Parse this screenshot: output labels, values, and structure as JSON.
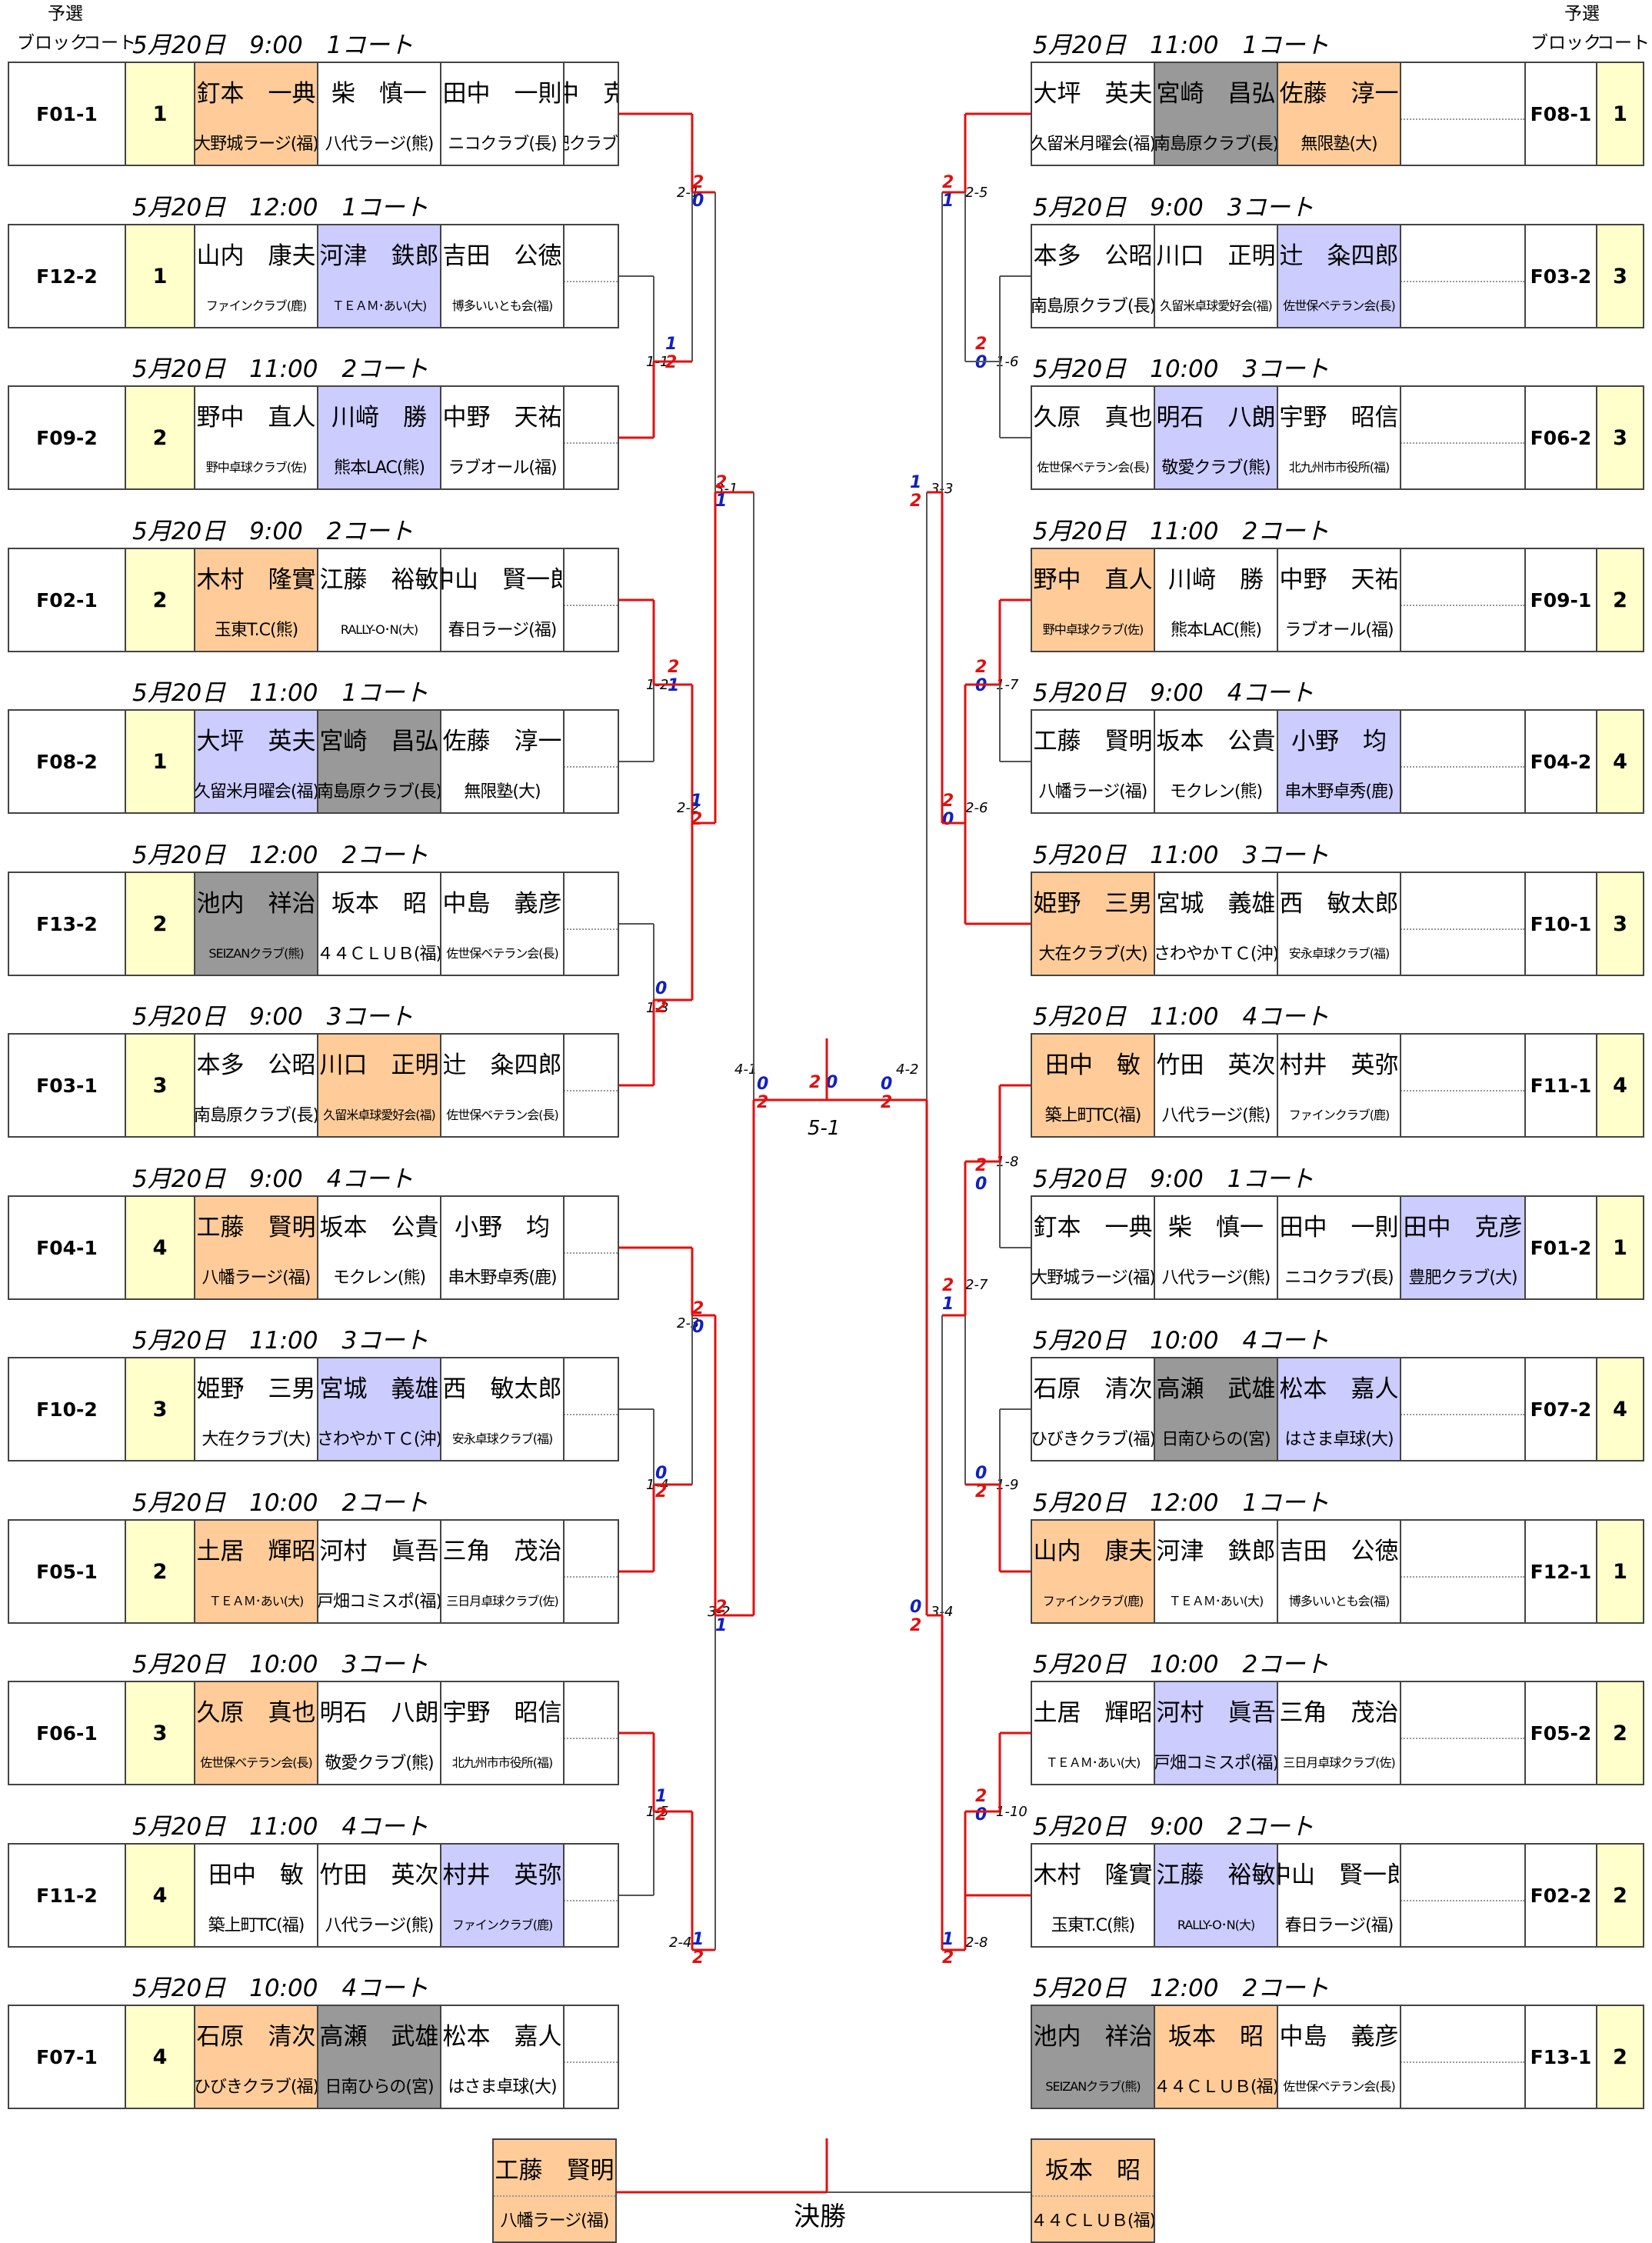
{
  "headers": {
    "yosen": "予選",
    "block": "ブロック",
    "court": "コート"
  },
  "colors": {
    "win": "#ffcc99",
    "lose": "#ccccff",
    "abs": "#999999",
    "rank": "#ffffcc",
    "line_win": "#e01010",
    "score_red": "#e01010",
    "score_blue": "#1020c0"
  },
  "left_groups": [
    {
      "title": "5月20日　9:00　1コート",
      "id": "F01-1",
      "rank": "1",
      "players": [
        {
          "name": "釘本　一典",
          "club": "大野城ラージ(福)",
          "st": "w"
        },
        {
          "name": "柴　慎一",
          "club": "八代ラージ(熊)",
          "st": ""
        },
        {
          "name": "田中　一則",
          "club": "ニコクラブ(長)",
          "st": ""
        },
        {
          "name": "田中　克彦",
          "club": "豊肥クラブ(大)",
          "st": ""
        }
      ]
    },
    {
      "title": "5月20日　12:00　1コート",
      "id": "F12-2",
      "rank": "1",
      "players": [
        {
          "name": "山内　康夫",
          "club": "ファインクラブ(鹿)",
          "st": ""
        },
        {
          "name": "河津　鉄郎",
          "club": "ＴＥＡＭ･あい(大)",
          "st": "l"
        },
        {
          "name": "吉田　公徳",
          "club": "博多いいとも会(福)",
          "st": ""
        }
      ]
    },
    {
      "title": "5月20日　11:00　2コート",
      "id": "F09-2",
      "rank": "2",
      "players": [
        {
          "name": "野中　直人",
          "club": "野中卓球クラブ(佐)",
          "st": ""
        },
        {
          "name": "川﨑　勝",
          "club": "熊本LAC(熊)",
          "st": "l"
        },
        {
          "name": "中野　天祐",
          "club": "ラブオール(福)",
          "st": ""
        }
      ]
    },
    {
      "title": "5月20日　9:00　2コート",
      "id": "F02-1",
      "rank": "2",
      "players": [
        {
          "name": "木村　隆實",
          "club": "玉東T.C(熊)",
          "st": "w"
        },
        {
          "name": "江藤　裕敏",
          "club": "RALLY-O･N(大)",
          "st": ""
        },
        {
          "name": "中山　賢一郎",
          "club": "春日ラージ(福)",
          "st": ""
        }
      ]
    },
    {
      "title": "5月20日　11:00　1コート",
      "id": "F08-2",
      "rank": "1",
      "players": [
        {
          "name": "大坪　英夫",
          "club": "久留米月曜会(福)",
          "st": "l"
        },
        {
          "name": "宮崎　昌弘",
          "club": "南島原クラブ(長)",
          "st": "a"
        },
        {
          "name": "佐藤　淳一",
          "club": "無限塾(大)",
          "st": ""
        }
      ]
    },
    {
      "title": "5月20日　12:00　2コート",
      "id": "F13-2",
      "rank": "2",
      "players": [
        {
          "name": "池内　祥治",
          "club": "SEIZANクラブ(熊)",
          "st": "a"
        },
        {
          "name": "坂本　昭",
          "club": "４４ＣＬＵＢ(福)",
          "st": ""
        },
        {
          "name": "中島　義彦",
          "club": "佐世保ベテラン会(長)",
          "st": ""
        }
      ]
    },
    {
      "title": "5月20日　9:00　3コート",
      "id": "F03-1",
      "rank": "3",
      "players": [
        {
          "name": "本多　公昭",
          "club": "南島原クラブ(長)",
          "st": ""
        },
        {
          "name": "川口　正明",
          "club": "久留米卓球愛好会(福)",
          "st": "w"
        },
        {
          "name": "辻　粂四郎",
          "club": "佐世保ベテラン会(長)",
          "st": ""
        }
      ]
    },
    {
      "title": "5月20日　9:00　4コート",
      "id": "F04-1",
      "rank": "4",
      "players": [
        {
          "name": "工藤　賢明",
          "club": "八幡ラージ(福)",
          "st": "w"
        },
        {
          "name": "坂本　公貴",
          "club": "モクレン(熊)",
          "st": ""
        },
        {
          "name": "小野　均",
          "club": "串木野卓秀(鹿)",
          "st": ""
        }
      ]
    },
    {
      "title": "5月20日　11:00　3コート",
      "id": "F10-2",
      "rank": "3",
      "players": [
        {
          "name": "姫野　三男",
          "club": "大在クラブ(大)",
          "st": ""
        },
        {
          "name": "宮城　義雄",
          "club": "さわやかＴＣ(沖)",
          "st": "l"
        },
        {
          "name": "西　敏太郎",
          "club": "安永卓球クラブ(福)",
          "st": ""
        }
      ]
    },
    {
      "title": "5月20日　10:00　2コート",
      "id": "F05-1",
      "rank": "2",
      "players": [
        {
          "name": "土居　輝昭",
          "club": "ＴＥＡＭ･あい(大)",
          "st": "w"
        },
        {
          "name": "河村　眞吾",
          "club": "戸畑コミスポ(福)",
          "st": ""
        },
        {
          "name": "三角　茂治",
          "club": "三日月卓球クラブ(佐)",
          "st": ""
        }
      ]
    },
    {
      "title": "5月20日　10:00　3コート",
      "id": "F06-1",
      "rank": "3",
      "players": [
        {
          "name": "久原　真也",
          "club": "佐世保ベテラン会(長)",
          "st": "w"
        },
        {
          "name": "明石　八朗",
          "club": "敬愛クラブ(熊)",
          "st": ""
        },
        {
          "name": "宇野　昭信",
          "club": "北九州市市役所(福)",
          "st": ""
        }
      ]
    },
    {
      "title": "5月20日　11:00　4コート",
      "id": "F11-2",
      "rank": "4",
      "players": [
        {
          "name": "田中　敏",
          "club": "築上町TC(福)",
          "st": ""
        },
        {
          "name": "竹田　英次",
          "club": "八代ラージ(熊)",
          "st": ""
        },
        {
          "name": "村井　英弥",
          "club": "ファインクラブ(鹿)",
          "st": "l"
        }
      ]
    },
    {
      "title": "5月20日　10:00　4コート",
      "id": "F07-1",
      "rank": "4",
      "players": [
        {
          "name": "石原　清次",
          "club": "ひびきクラブ(福)",
          "st": "w"
        },
        {
          "name": "高瀬　武雄",
          "club": "日南ひらの(宮)",
          "st": "a"
        },
        {
          "name": "松本　嘉人",
          "club": "はさま卓球(大)",
          "st": ""
        }
      ]
    }
  ],
  "right_groups": [
    {
      "title": "5月20日　11:00　1コート",
      "id": "F08-1",
      "rank": "1",
      "players": [
        {
          "name": "大坪　英夫",
          "club": "久留米月曜会(福)",
          "st": ""
        },
        {
          "name": "宮崎　昌弘",
          "club": "南島原クラブ(長)",
          "st": "a"
        },
        {
          "name": "佐藤　淳一",
          "club": "無限塾(大)",
          "st": "w"
        }
      ]
    },
    {
      "title": "5月20日　9:00　3コート",
      "id": "F03-2",
      "rank": "3",
      "players": [
        {
          "name": "本多　公昭",
          "club": "南島原クラブ(長)",
          "st": ""
        },
        {
          "name": "川口　正明",
          "club": "久留米卓球愛好会(福)",
          "st": ""
        },
        {
          "name": "辻　粂四郎",
          "club": "佐世保ベテラン会(長)",
          "st": "l"
        }
      ]
    },
    {
      "title": "5月20日　10:00　3コート",
      "id": "F06-2",
      "rank": "3",
      "players": [
        {
          "name": "久原　真也",
          "club": "佐世保ベテラン会(長)",
          "st": ""
        },
        {
          "name": "明石　八朗",
          "club": "敬愛クラブ(熊)",
          "st": "l"
        },
        {
          "name": "宇野　昭信",
          "club": "北九州市市役所(福)",
          "st": ""
        }
      ]
    },
    {
      "title": "5月20日　11:00　2コート",
      "id": "F09-1",
      "rank": "2",
      "players": [
        {
          "name": "野中　直人",
          "club": "野中卓球クラブ(佐)",
          "st": "w"
        },
        {
          "name": "川﨑　勝",
          "club": "熊本LAC(熊)",
          "st": ""
        },
        {
          "name": "中野　天祐",
          "club": "ラブオール(福)",
          "st": ""
        }
      ]
    },
    {
      "title": "5月20日　9:00　4コート",
      "id": "F04-2",
      "rank": "4",
      "players": [
        {
          "name": "工藤　賢明",
          "club": "八幡ラージ(福)",
          "st": ""
        },
        {
          "name": "坂本　公貴",
          "club": "モクレン(熊)",
          "st": ""
        },
        {
          "name": "小野　均",
          "club": "串木野卓秀(鹿)",
          "st": "l"
        }
      ]
    },
    {
      "title": "5月20日　11:00　3コート",
      "id": "F10-1",
      "rank": "3",
      "players": [
        {
          "name": "姫野　三男",
          "club": "大在クラブ(大)",
          "st": "w"
        },
        {
          "name": "宮城　義雄",
          "club": "さわやかＴＣ(沖)",
          "st": ""
        },
        {
          "name": "西　敏太郎",
          "club": "安永卓球クラブ(福)",
          "st": ""
        }
      ]
    },
    {
      "title": "5月20日　11:00　4コート",
      "id": "F11-1",
      "rank": "4",
      "players": [
        {
          "name": "田中　敏",
          "club": "築上町TC(福)",
          "st": "w"
        },
        {
          "name": "竹田　英次",
          "club": "八代ラージ(熊)",
          "st": ""
        },
        {
          "name": "村井　英弥",
          "club": "ファインクラブ(鹿)",
          "st": ""
        }
      ]
    },
    {
      "title": "5月20日　9:00　1コート",
      "id": "F01-2",
      "rank": "1",
      "players": [
        {
          "name": "釘本　一典",
          "club": "大野城ラージ(福)",
          "st": ""
        },
        {
          "name": "柴　慎一",
          "club": "八代ラージ(熊)",
          "st": ""
        },
        {
          "name": "田中　一則",
          "club": "ニコクラブ(長)",
          "st": ""
        },
        {
          "name": "田中　克彦",
          "club": "豊肥クラブ(大)",
          "st": "l"
        }
      ]
    },
    {
      "title": "5月20日　10:00　4コート",
      "id": "F07-2",
      "rank": "4",
      "players": [
        {
          "name": "石原　清次",
          "club": "ひびきクラブ(福)",
          "st": ""
        },
        {
          "name": "高瀬　武雄",
          "club": "日南ひらの(宮)",
          "st": "a"
        },
        {
          "name": "松本　嘉人",
          "club": "はさま卓球(大)",
          "st": "l"
        }
      ]
    },
    {
      "title": "5月20日　12:00　1コート",
      "id": "F12-1",
      "rank": "1",
      "players": [
        {
          "name": "山内　康夫",
          "club": "ファインクラブ(鹿)",
          "st": "w"
        },
        {
          "name": "河津　鉄郎",
          "club": "ＴＥＡＭ･あい(大)",
          "st": ""
        },
        {
          "name": "吉田　公徳",
          "club": "博多いいとも会(福)",
          "st": ""
        }
      ]
    },
    {
      "title": "5月20日　10:00　2コート",
      "id": "F05-2",
      "rank": "2",
      "players": [
        {
          "name": "土居　輝昭",
          "club": "ＴＥＡＭ･あい(大)",
          "st": ""
        },
        {
          "name": "河村　眞吾",
          "club": "戸畑コミスポ(福)",
          "st": "l"
        },
        {
          "name": "三角　茂治",
          "club": "三日月卓球クラブ(佐)",
          "st": ""
        }
      ]
    },
    {
      "title": "5月20日　9:00　2コート",
      "id": "F02-2",
      "rank": "2",
      "players": [
        {
          "name": "木村　隆實",
          "club": "玉東T.C(熊)",
          "st": ""
        },
        {
          "name": "江藤　裕敏",
          "club": "RALLY-O･N(大)",
          "st": "l"
        },
        {
          "name": "中山　賢一郎",
          "club": "春日ラージ(福)",
          "st": ""
        }
      ]
    },
    {
      "title": "5月20日　12:00　2コート",
      "id": "F13-1",
      "rank": "2",
      "players": [
        {
          "name": "池内　祥治",
          "club": "SEIZANクラブ(熊)",
          "st": "a"
        },
        {
          "name": "坂本　昭",
          "club": "４４ＣＬＵＢ(福)",
          "st": "w"
        },
        {
          "name": "中島　義彦",
          "club": "佐世保ベテラン会(長)",
          "st": ""
        }
      ]
    }
  ],
  "match_labels": {
    "left": [
      "2-1",
      "1-1",
      "3-1",
      "1-2",
      "2-2",
      "1-3",
      "4-1",
      "2-3",
      "1-4",
      "3-2",
      "1-5",
      "2-4"
    ],
    "right": [
      "2-5",
      "1-6",
      "3-3",
      "1-7",
      "2-6",
      "1-8",
      "4-2",
      "2-7",
      "1-9",
      "3-4",
      "1-10",
      "2-8"
    ],
    "final": "5-1"
  },
  "scores": {
    "left": [
      [
        "2",
        "0"
      ],
      [
        "1",
        "2"
      ],
      [
        "2",
        "1"
      ],
      [
        "2",
        "1"
      ],
      [
        "1",
        "2"
      ],
      [
        "0",
        "2"
      ],
      [
        "0",
        "2"
      ],
      [
        "2",
        "0"
      ],
      [
        "0",
        "2"
      ],
      [
        "2",
        "1"
      ],
      [
        "1",
        "2"
      ],
      [
        "1",
        "2"
      ]
    ],
    "right": [
      [
        "2",
        "1"
      ],
      [
        "2",
        "0"
      ],
      [
        "1",
        "2"
      ],
      [
        "2",
        "0"
      ],
      [
        "2",
        "0"
      ],
      [
        "2",
        "0"
      ],
      [
        "0",
        "2"
      ],
      [
        "2",
        "1"
      ],
      [
        "0",
        "2"
      ],
      [
        "0",
        "2"
      ],
      [
        "2",
        "0"
      ],
      [
        "1",
        "2"
      ]
    ],
    "final": [
      "2",
      "0"
    ]
  },
  "finalists": {
    "left": {
      "name": "工藤　賢明",
      "club": "八幡ラージ(福)"
    },
    "right": {
      "name": "坂本　昭",
      "club": "４４ＣＬＵＢ(福)"
    },
    "label": "決勝"
  }
}
